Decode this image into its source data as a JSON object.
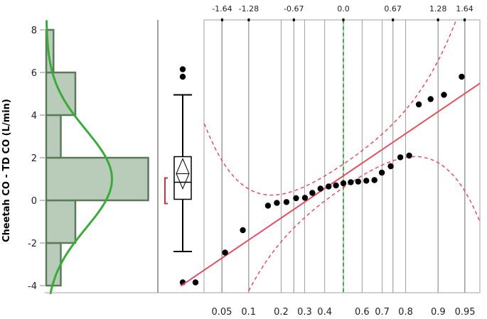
{
  "chart_data": {
    "type": "scatter",
    "ylabel": "Cheetah CO - TD CO (L/min)",
    "ylim": [
      -4.4,
      8.4
    ],
    "y_ticks": [
      "8",
      "6",
      "4",
      "2",
      "0",
      "-2",
      "-4"
    ],
    "histogram": {
      "bins": [
        {
          "from": -4,
          "to": -2,
          "count": 1
        },
        {
          "from": -2,
          "to": 0,
          "count": 2
        },
        {
          "from": 0,
          "to": 2,
          "count": 7
        },
        {
          "from": 2,
          "to": 4,
          "count": 1
        },
        {
          "from": 4,
          "to": 6,
          "count": 2
        },
        {
          "from": 6,
          "to": 8,
          "count": 0.5
        }
      ],
      "normal_curve": {
        "mean": 1.0,
        "sd": 2.3
      }
    },
    "boxplot": {
      "min": -2.4,
      "q1": 0.05,
      "median": 0.85,
      "q3": 2.05,
      "max": 4.95,
      "mean": 1.25,
      "mean_ci": [
        0.55,
        1.95
      ],
      "shortest_half": [
        -0.15,
        1.05
      ],
      "outliers": [
        6.15,
        5.8,
        -3.85
      ]
    },
    "quantile_plot": {
      "top_ticks": [
        "-1.64",
        "-1.28",
        "-0.67",
        "0.0",
        "0.67",
        "1.28",
        "1.64"
      ],
      "top_tick_values": [
        -1.64,
        -1.28,
        -0.67,
        0.0,
        0.67,
        1.28,
        1.64
      ],
      "bottom_ticks": [
        "0.05",
        "0.1",
        "0.2",
        "0.3",
        "0.4",
        "0.6",
        "0.7",
        "0.8",
        "0.9",
        "0.95"
      ],
      "bottom_tick_values": [
        0.05,
        0.1,
        0.2,
        0.3,
        0.4,
        0.6,
        0.7,
        0.8,
        0.9,
        0.95
      ],
      "points": [
        {
          "z": -2.0,
          "y": -3.85
        },
        {
          "z": -1.6,
          "y": -2.45
        },
        {
          "z": -1.36,
          "y": -1.4
        },
        {
          "z": -1.02,
          "y": -0.25
        },
        {
          "z": -0.9,
          "y": -0.12
        },
        {
          "z": -0.77,
          "y": -0.08
        },
        {
          "z": -0.64,
          "y": 0.1
        },
        {
          "z": -0.52,
          "y": 0.12
        },
        {
          "z": -0.42,
          "y": 0.35
        },
        {
          "z": -0.31,
          "y": 0.55
        },
        {
          "z": -0.2,
          "y": 0.65
        },
        {
          "z": -0.1,
          "y": 0.7
        },
        {
          "z": 0.0,
          "y": 0.8
        },
        {
          "z": 0.1,
          "y": 0.85
        },
        {
          "z": 0.2,
          "y": 0.88
        },
        {
          "z": 0.31,
          "y": 0.92
        },
        {
          "z": 0.42,
          "y": 0.95
        },
        {
          "z": 0.52,
          "y": 1.3
        },
        {
          "z": 0.64,
          "y": 1.6
        },
        {
          "z": 0.77,
          "y": 2.02
        },
        {
          "z": 0.89,
          "y": 2.1
        },
        {
          "z": 1.02,
          "y": 4.5
        },
        {
          "z": 1.18,
          "y": 4.75
        },
        {
          "z": 1.36,
          "y": 4.95
        },
        {
          "z": 1.6,
          "y": 5.8
        },
        {
          "z": 2.0,
          "y": 6.15
        }
      ],
      "fit_line": {
        "intercept": 1.15,
        "slope": 2.35
      },
      "colors": {
        "points": "#000000",
        "fit_line": "#e05060",
        "bands": "#e05060",
        "zero_line": "#40b040"
      }
    },
    "colors": {
      "hist_fill": "#b9cbb9",
      "hist_stroke": "#5a7a5a",
      "normal_curve": "#3aaa3a",
      "grid": "#a0a0a0"
    }
  }
}
